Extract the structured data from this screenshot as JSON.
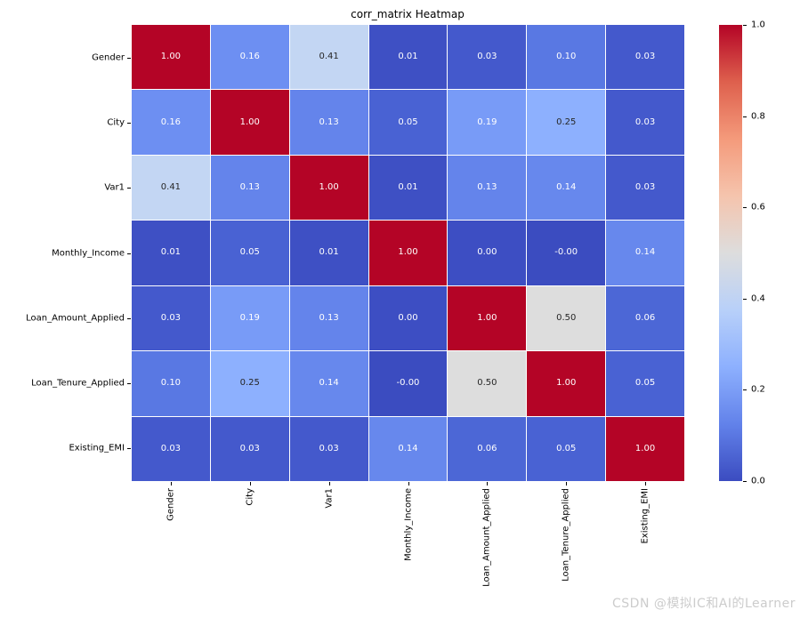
{
  "chart_data": {
    "type": "heatmap",
    "title": "corr_matrix Heatmap",
    "categories": [
      "Gender",
      "City",
      "Var1",
      "Monthly_Income",
      "Loan_Amount_Applied",
      "Loan_Tenure_Applied",
      "Existing_EMI"
    ],
    "values": [
      [
        1.0,
        0.16,
        0.41,
        0.01,
        0.03,
        0.1,
        0.03
      ],
      [
        0.16,
        1.0,
        0.13,
        0.05,
        0.19,
        0.25,
        0.03
      ],
      [
        0.41,
        0.13,
        1.0,
        0.01,
        0.13,
        0.14,
        0.03
      ],
      [
        0.01,
        0.05,
        0.01,
        1.0,
        0.0,
        -0.0,
        0.14
      ],
      [
        0.03,
        0.19,
        0.13,
        0.0,
        1.0,
        0.5,
        0.06
      ],
      [
        0.1,
        0.25,
        0.14,
        -0.0,
        0.5,
        1.0,
        0.05
      ],
      [
        0.03,
        0.03,
        0.03,
        0.14,
        0.06,
        0.05,
        1.0
      ]
    ],
    "annotations": [
      [
        "1.00",
        "0.16",
        "0.41",
        "0.01",
        "0.03",
        "0.10",
        "0.03"
      ],
      [
        "0.16",
        "1.00",
        "0.13",
        "0.05",
        "0.19",
        "0.25",
        "0.03"
      ],
      [
        "0.41",
        "0.13",
        "1.00",
        "0.01",
        "0.13",
        "0.14",
        "0.03"
      ],
      [
        "0.01",
        "0.05",
        "0.01",
        "1.00",
        "0.00",
        "-0.00",
        "0.14"
      ],
      [
        "0.03",
        "0.19",
        "0.13",
        "0.00",
        "1.00",
        "0.50",
        "0.06"
      ],
      [
        "0.10",
        "0.25",
        "0.14",
        "-0.00",
        "0.50",
        "1.00",
        "0.05"
      ],
      [
        "0.03",
        "0.03",
        "0.03",
        "0.14",
        "0.06",
        "0.05",
        "1.00"
      ]
    ],
    "colormap": "coolwarm",
    "vmin": 0.0,
    "vmax": 1.0,
    "grid": false,
    "legend_position": "colorbar-right",
    "colorbar_ticks": [
      "1.0",
      "0.8",
      "0.6",
      "0.4",
      "0.2",
      "0.0"
    ]
  },
  "colors": {
    "cell_colors": {
      "-0.00": "#3b4cc0",
      "0.00": "#3d4ec3",
      "0.01": "#3e50c4",
      "0.03": "#4459cc",
      "0.05": "#4962d3",
      "0.06": "#4c67d6",
      "0.10": "#5978e3",
      "0.13": "#6484eb",
      "0.14": "#6788ed",
      "0.16": "#6d8ff2",
      "0.19": "#789bf7",
      "0.25": "#8db0fe",
      "0.41": "#c3d6f3",
      "0.50": "#dddddd",
      "1.00": "#b40426"
    },
    "colorbar_gradient_bottom_to_top": [
      "#3b4cc0",
      "#6282ea",
      "#8db0fe",
      "#b8d0f9",
      "#dddddd",
      "#f5c4ad",
      "#f49a7b",
      "#de604d",
      "#b40426"
    ],
    "annotation_dark": "#262626",
    "annotation_light": "#ffffff",
    "axis_text": "#000000",
    "watermark": "#cccccc"
  },
  "watermark": {
    "text": "CSDN @模拟IC和AI的Learner"
  }
}
